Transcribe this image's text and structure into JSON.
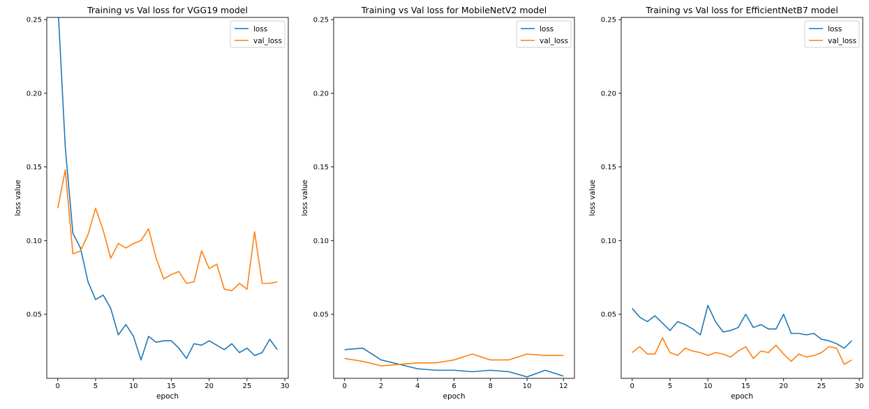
{
  "chart_data": [
    {
      "type": "line",
      "title": "Training vs Val loss for VGG19 model",
      "xlabel": "epoch",
      "ylabel": "loss value",
      "xlim": [
        -1.45,
        30.45
      ],
      "ylim": [
        0.0065,
        0.2515
      ],
      "xticks": [
        0,
        5,
        10,
        15,
        20,
        25,
        30
      ],
      "yticks": [
        0.05,
        0.1,
        0.15,
        0.2,
        0.25
      ],
      "ytick_labels": [
        "0.05",
        "0.10",
        "0.15",
        "0.20",
        "0.25"
      ],
      "legend_position": "upper-right",
      "x": [
        0,
        1,
        2,
        3,
        4,
        5,
        6,
        7,
        8,
        9,
        10,
        11,
        12,
        13,
        14,
        15,
        16,
        17,
        18,
        19,
        20,
        21,
        22,
        23,
        24,
        25,
        26,
        27,
        28,
        29
      ],
      "series": [
        {
          "name": "loss",
          "color": "#1f77b4",
          "values": [
            0.262,
            0.163,
            0.105,
            0.095,
            0.072,
            0.06,
            0.063,
            0.054,
            0.036,
            0.043,
            0.035,
            0.019,
            0.035,
            0.031,
            0.032,
            0.032,
            0.027,
            0.02,
            0.03,
            0.029,
            0.032,
            0.029,
            0.026,
            0.03,
            0.024,
            0.027,
            0.022,
            0.024,
            0.033,
            0.026
          ]
        },
        {
          "name": "val_loss",
          "color": "#ff7f0e",
          "values": [
            0.122,
            0.148,
            0.091,
            0.093,
            0.104,
            0.122,
            0.107,
            0.088,
            0.098,
            0.095,
            0.098,
            0.1,
            0.108,
            0.088,
            0.074,
            0.077,
            0.079,
            0.071,
            0.072,
            0.093,
            0.081,
            0.084,
            0.067,
            0.066,
            0.071,
            0.067,
            0.106,
            0.071,
            0.071,
            0.072
          ]
        }
      ]
    },
    {
      "type": "line",
      "title": "Training vs Val loss for MobileNetV2 model",
      "xlabel": "epoch",
      "ylabel": "loss value",
      "xlim": [
        -0.6,
        12.6
      ],
      "ylim": [
        0.0065,
        0.2515
      ],
      "xticks": [
        0,
        2,
        4,
        6,
        8,
        10,
        12
      ],
      "yticks": [
        0.05,
        0.1,
        0.15,
        0.2,
        0.25
      ],
      "ytick_labels": [
        "0.05",
        "0.10",
        "0.15",
        "0.20",
        "0.25"
      ],
      "legend_position": "upper-right",
      "x": [
        0,
        1,
        2,
        3,
        4,
        5,
        6,
        7,
        8,
        9,
        10,
        11,
        12
      ],
      "series": [
        {
          "name": "loss",
          "color": "#1f77b4",
          "values": [
            0.026,
            0.027,
            0.019,
            0.016,
            0.013,
            0.012,
            0.012,
            0.011,
            0.012,
            0.011,
            0.0075,
            0.012,
            0.008
          ]
        },
        {
          "name": "val_loss",
          "color": "#ff7f0e",
          "values": [
            0.02,
            0.018,
            0.015,
            0.016,
            0.017,
            0.017,
            0.019,
            0.023,
            0.019,
            0.019,
            0.023,
            0.022,
            0.022
          ]
        }
      ]
    },
    {
      "type": "line",
      "title": "Training vs Val loss for EfficientNetB7 model",
      "xlabel": "epoch",
      "ylabel": "loss value",
      "xlim": [
        -1.45,
        30.45
      ],
      "ylim": [
        0.0065,
        0.2515
      ],
      "xticks": [
        0,
        5,
        10,
        15,
        20,
        25,
        30
      ],
      "yticks": [
        0.05,
        0.1,
        0.15,
        0.2,
        0.25
      ],
      "ytick_labels": [
        "0.05",
        "0.10",
        "0.15",
        "0.20",
        "0.25"
      ],
      "legend_position": "upper-right",
      "x": [
        0,
        1,
        2,
        3,
        4,
        5,
        6,
        7,
        8,
        9,
        10,
        11,
        12,
        13,
        14,
        15,
        16,
        17,
        18,
        19,
        20,
        21,
        22,
        23,
        24,
        25,
        26,
        27,
        28,
        29
      ],
      "series": [
        {
          "name": "loss",
          "color": "#1f77b4",
          "values": [
            0.054,
            0.048,
            0.045,
            0.049,
            0.044,
            0.039,
            0.045,
            0.043,
            0.04,
            0.036,
            0.056,
            0.045,
            0.038,
            0.039,
            0.041,
            0.05,
            0.041,
            0.043,
            0.04,
            0.04,
            0.05,
            0.037,
            0.037,
            0.036,
            0.037,
            0.033,
            0.032,
            0.03,
            0.027,
            0.032
          ]
        },
        {
          "name": "val_loss",
          "color": "#ff7f0e",
          "values": [
            0.024,
            0.028,
            0.023,
            0.023,
            0.034,
            0.024,
            0.022,
            0.027,
            0.025,
            0.024,
            0.022,
            0.024,
            0.023,
            0.021,
            0.025,
            0.028,
            0.02,
            0.025,
            0.024,
            0.029,
            0.023,
            0.018,
            0.023,
            0.021,
            0.022,
            0.024,
            0.028,
            0.027,
            0.016,
            0.019
          ]
        }
      ]
    }
  ]
}
